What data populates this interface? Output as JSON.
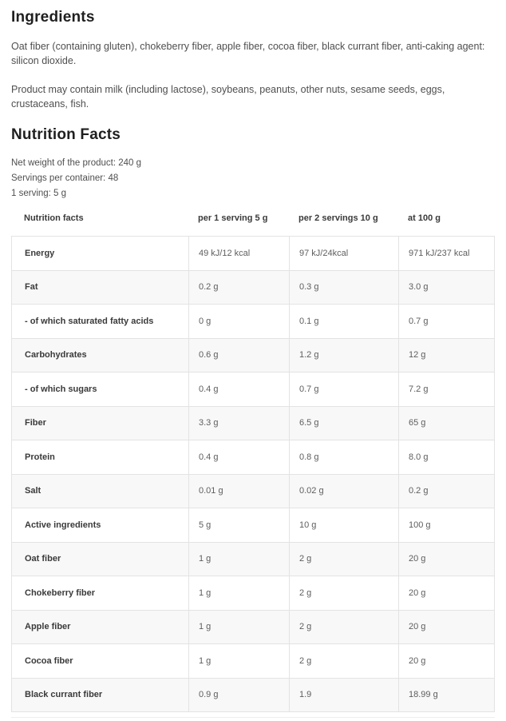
{
  "ingredients": {
    "title": "Ingredients",
    "composition": "Oat fiber (containing gluten), chokeberry fiber, apple fiber, cocoa fiber, black currant fiber, anti-caking agent: silicon dioxide.",
    "allergens": "Product may contain milk (including lactose), soybeans, peanuts, other nuts, sesame seeds, eggs, crustaceans, fish."
  },
  "nutrition": {
    "title": "Nutrition Facts",
    "meta": [
      "Net weight of the product: 240 g",
      "Servings per container: 48",
      "1 serving: 5 g"
    ],
    "table": {
      "headers": [
        "Nutrition facts",
        "per 1 serving 5 g",
        "per 2 servings 10 g",
        "at 100 g"
      ],
      "rows": [
        {
          "label": "Energy",
          "values": [
            "49 kJ/12 kcal",
            "97 kJ/24kcal",
            "971 kJ/237 kcal"
          ]
        },
        {
          "label": "Fat",
          "values": [
            "0.2 g",
            "0.3 g",
            "3.0 g"
          ]
        },
        {
          "label": "- of which saturated fatty acids",
          "values": [
            "0 g",
            "0.1 g",
            "0.7 g"
          ]
        },
        {
          "label": "Carbohydrates",
          "values": [
            "0.6 g",
            "1.2 g",
            "12 g"
          ]
        },
        {
          "label": "- of which sugars",
          "values": [
            "0.4 g",
            "0.7 g",
            "7.2 g"
          ]
        },
        {
          "label": "Fiber",
          "values": [
            "3.3 g",
            "6.5 g",
            "65 g"
          ]
        },
        {
          "label": "Protein",
          "values": [
            "0.4 g",
            "0.8 g",
            "8.0 g"
          ]
        },
        {
          "label": "Salt",
          "values": [
            "0.01 g",
            "0.02 g",
            "0.2 g"
          ]
        },
        {
          "label": "Active ingredients",
          "values": [
            "5 g",
            "10 g",
            "100 g"
          ]
        },
        {
          "label": "Oat fiber",
          "values": [
            "1 g",
            "2 g",
            "20 g"
          ]
        },
        {
          "label": "Chokeberry fiber",
          "values": [
            "1 g",
            "2 g",
            "20 g"
          ]
        },
        {
          "label": "Apple fiber",
          "values": [
            "1 g",
            "2 g",
            "20 g"
          ]
        },
        {
          "label": "Cocoa fiber",
          "values": [
            "1 g",
            "2 g",
            "20 g"
          ]
        },
        {
          "label": "Black currant fiber",
          "values": [
            "0.9 g",
            "1.9",
            "18.99 g"
          ]
        }
      ]
    }
  },
  "colors": {
    "background": "#ffffff",
    "heading_text": "#1f1f1f",
    "body_text": "#4f4f4f",
    "label_text": "#3a3a3a",
    "value_text": "#5e5e5e",
    "table_border": "#e3e3e3",
    "row_alt_bg": "#f8f8f8"
  }
}
